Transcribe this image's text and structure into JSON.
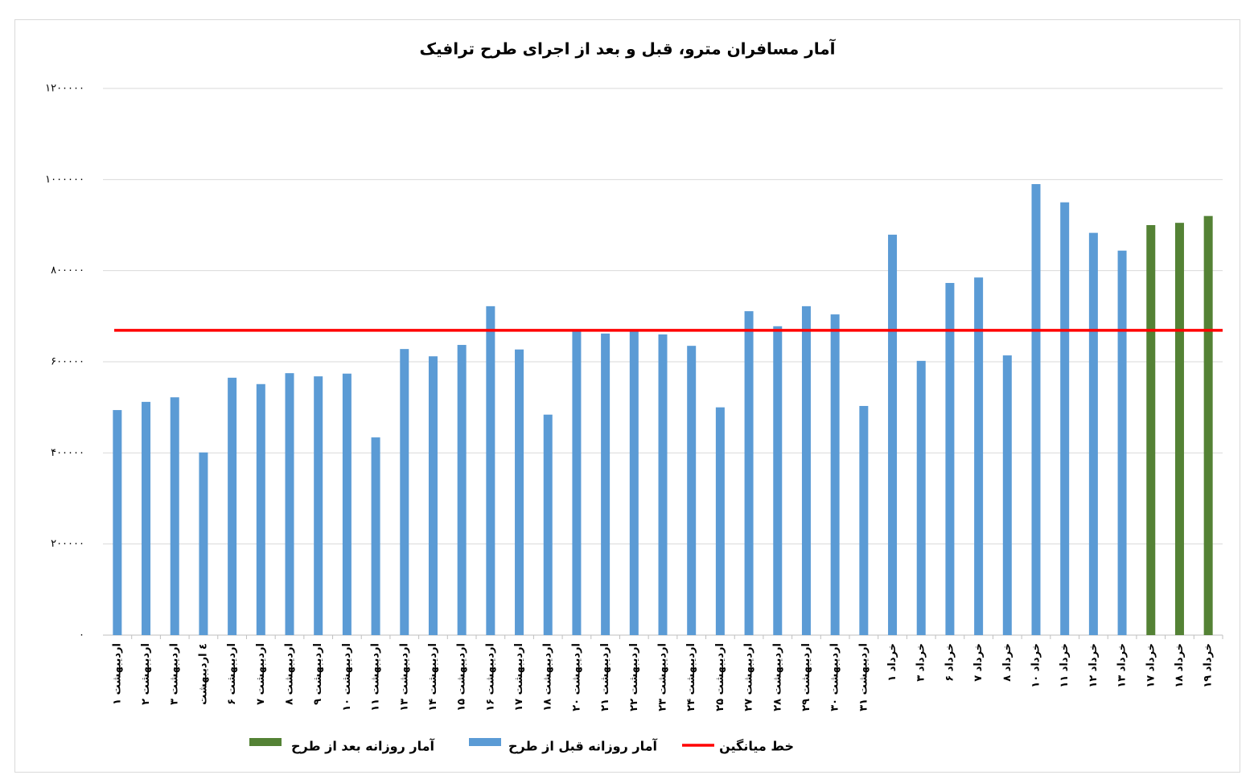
{
  "chart_data": {
    "type": "bar",
    "title": "آمار مسافران مترو، قبل و بعد از اجرای طرح ترافیک",
    "categories": [
      "۱ اردیبهشت",
      "۲ اردیبهشت",
      "۳ اردیبهشت",
      "٤ اردیبهشت",
      "۶ اردیبهشت",
      "۷ اردیبهشت",
      "۸ اردیبهشت",
      "۹ اردیبهشت",
      "۱۰ اردیبهشت",
      "۱۱ اردیبهشت",
      "۱۳ اردیبهشت",
      "۱۴ اردیبهشت",
      "۱۵ اردیبهشت",
      "۱۶ اردیبهشت",
      "۱۷ اردیبهشت",
      "۱۸ اردیبهشت",
      "۲۰ اردیبهشت",
      "۲۱ اردیبهشت",
      "۲۲ اردیبهشت",
      "۲۳ اردیبهشت",
      "۲۴ اردیبهشت",
      "۲۵ اردیبهشت",
      "۲۷ اردیبهشت",
      "۲۸ اردیبهشت",
      "۲۹ اردیبهشت",
      "۳۰ اردیبهشت",
      "۳۱ اردیبهشت",
      "۱ خرداد",
      "۳ خرداد",
      "۶ خرداد",
      "۷ خرداد",
      "۸ خرداد",
      "۱۰ خرداد",
      "۱۱ خرداد",
      "۱۲ خرداد",
      "۱۳ خرداد",
      "۱۷ خرداد",
      "۱۸ خرداد",
      "۱۹ خرداد"
    ],
    "series": [
      {
        "name": "آمار روزانه قبل از طرح",
        "color": "#5b9bd5",
        "values": [
          494000,
          512000,
          522000,
          401000,
          565000,
          551000,
          575000,
          568000,
          574000,
          434000,
          628000,
          612000,
          637000,
          722000,
          627000,
          484000,
          671000,
          662000,
          671000,
          660000,
          635000,
          500000,
          711000,
          678000,
          722000,
          704000,
          503000,
          879000,
          602000,
          773000,
          785000,
          614000,
          990000,
          950000,
          883000,
          844000,
          null,
          null,
          null
        ]
      },
      {
        "name": "آمار روزانه بعد از طرح",
        "color": "#548235",
        "values": [
          null,
          null,
          null,
          null,
          null,
          null,
          null,
          null,
          null,
          null,
          null,
          null,
          null,
          null,
          null,
          null,
          null,
          null,
          null,
          null,
          null,
          null,
          null,
          null,
          null,
          null,
          null,
          null,
          null,
          null,
          null,
          null,
          null,
          null,
          null,
          null,
          900000,
          905000,
          920000
        ]
      }
    ],
    "average_line": {
      "name": "خط میانگین",
      "color": "#ff0000",
      "value": 669000
    },
    "ylim": [
      0,
      1200000
    ],
    "yticks": [
      {
        "value": 0,
        "label": "۰"
      },
      {
        "value": 200000,
        "label": "۲۰۰۰۰۰"
      },
      {
        "value": 400000,
        "label": "۴۰۰۰۰۰"
      },
      {
        "value": 600000,
        "label": "۶۰۰۰۰۰"
      },
      {
        "value": 800000,
        "label": "۸۰۰۰۰۰"
      },
      {
        "value": 1000000,
        "label": "۱۰۰۰۰۰۰"
      },
      {
        "value": 1200000,
        "label": "۱۲۰۰۰۰۰"
      }
    ],
    "grid": true
  }
}
